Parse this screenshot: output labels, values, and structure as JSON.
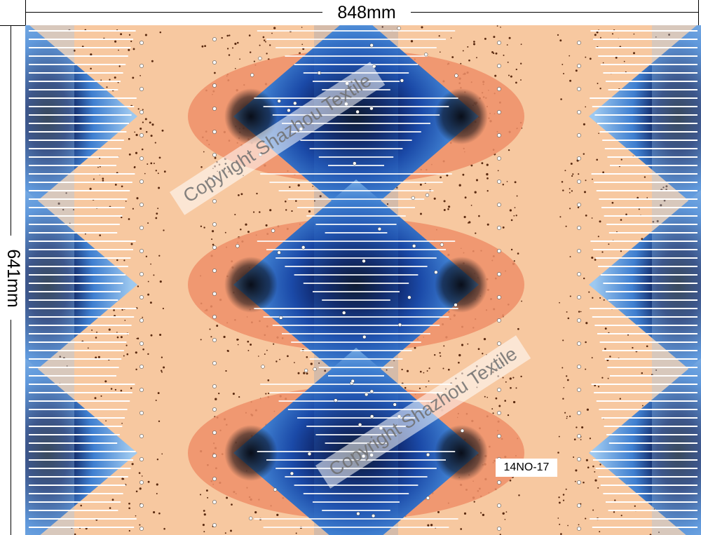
{
  "dimensions": {
    "width_label": "848mm",
    "height_label": "641mm"
  },
  "watermarks": [
    "Copyright Shazhou Textile",
    "Copyright Shazhou Textile"
  ],
  "design_code": "14NO-17",
  "colors": {
    "peach": "#f7c8a0",
    "salmon": "#ef8f68",
    "sky_blue": "#9ec9f0",
    "mid_blue": "#3f7fd0",
    "royal_blue": "#1b4aa8",
    "navy": "#0a1a55",
    "black": "#05070f",
    "speckle": "#5a2a10",
    "white": "#ffffff"
  },
  "pattern_description_icon": "ikat-diamond-pattern"
}
